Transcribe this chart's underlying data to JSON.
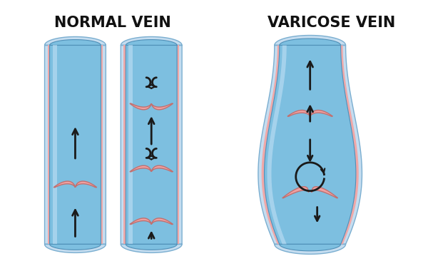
{
  "title_normal": "NORMAL VEIN",
  "title_varicose": "VARICOSE VEIN",
  "title_fontsize": 15,
  "title_fontweight": "bold",
  "bg_color": "#ffffff",
  "arrow_color": "#1a1a1a",
  "valve_color": "#f0a0a0",
  "valve_edge_color": "#c07070"
}
